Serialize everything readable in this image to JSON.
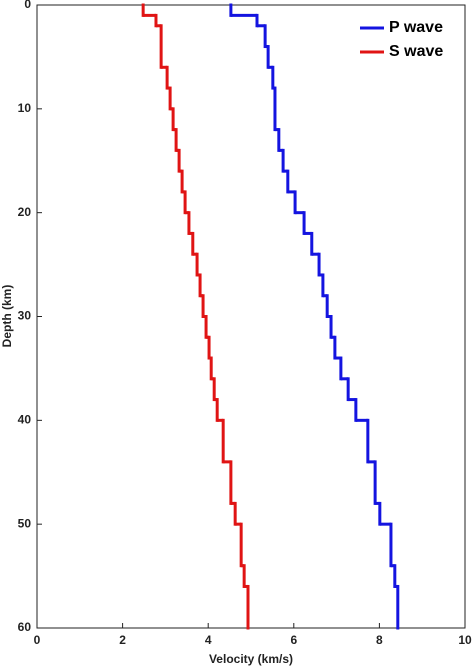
{
  "chart_data": {
    "type": "step",
    "x_label": "Velocity (km/s)",
    "y_label": "Depth (km)",
    "xlim": [
      0,
      10
    ],
    "xticks": [
      0,
      2,
      4,
      6,
      8,
      10
    ],
    "ylim": [
      0,
      60
    ],
    "yticks": [
      0,
      10,
      20,
      30,
      40,
      50,
      60
    ],
    "y_inverted": true,
    "legend": "upper right",
    "series": [
      {
        "name": "P wave",
        "color": "#1414e0",
        "depth": [
          0,
          1,
          2,
          4,
          6,
          8,
          12,
          14,
          16,
          18,
          20,
          22,
          24,
          26,
          28,
          30,
          32,
          34,
          36,
          38,
          40,
          44,
          48,
          50,
          54,
          56
        ],
        "values": [
          4.53,
          5.14,
          5.33,
          5.4,
          5.51,
          5.56,
          5.65,
          5.75,
          5.86,
          6.03,
          6.24,
          6.42,
          6.59,
          6.68,
          6.78,
          6.87,
          6.96,
          7.1,
          7.27,
          7.45,
          7.73,
          7.9,
          8.01,
          8.27,
          8.36,
          8.43
        ]
      },
      {
        "name": "S wave",
        "color": "#e01414",
        "depth": [
          0,
          1,
          2,
          6,
          8,
          10,
          12,
          14,
          16,
          18,
          20,
          22,
          24,
          26,
          28,
          30,
          32,
          34,
          36,
          38,
          40,
          44,
          48,
          50,
          54,
          56
        ],
        "values": [
          2.48,
          2.78,
          2.9,
          3.04,
          3.11,
          3.18,
          3.25,
          3.32,
          3.39,
          3.46,
          3.55,
          3.64,
          3.74,
          3.81,
          3.88,
          3.95,
          4.02,
          4.07,
          4.14,
          4.21,
          4.35,
          4.53,
          4.63,
          4.77,
          4.84,
          4.93
        ]
      }
    ]
  }
}
